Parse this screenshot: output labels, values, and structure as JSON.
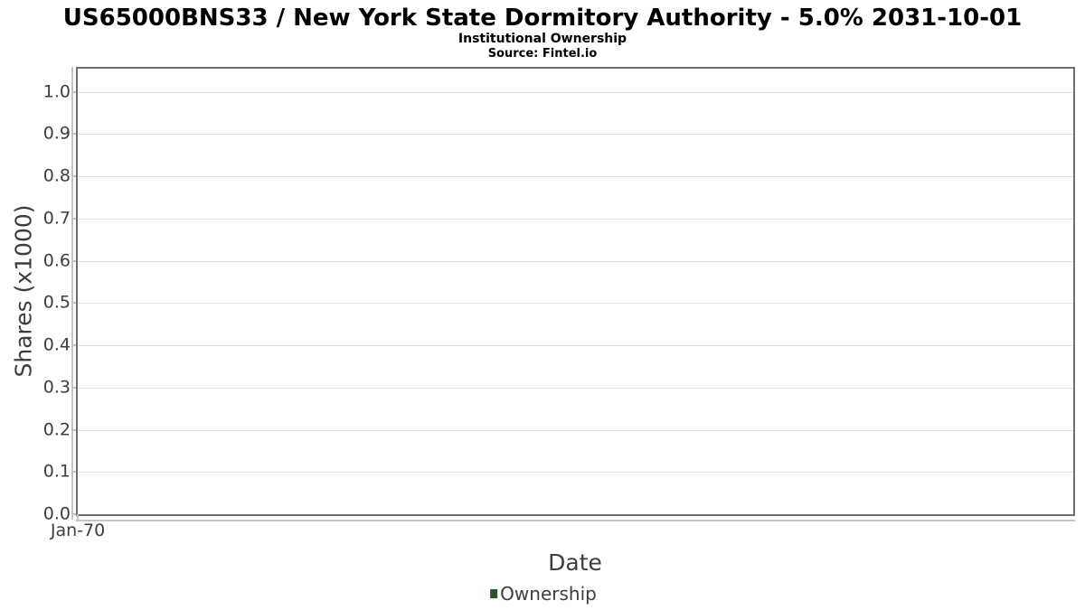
{
  "header": {
    "title": "US65000BNS33 / New York State Dormitory Authority - 5.0% 2031-10-01",
    "subtitle": "Institutional Ownership",
    "source": "Source: Fintel.io"
  },
  "colors": {
    "ownership_green": "#27522a",
    "grid_line": "#e2e2e2",
    "plot_border": "#6e6e6e",
    "tick_line": "#c4c4c4",
    "axis_text": "#3d3d3d",
    "title_text": "#000000"
  },
  "chart_data": {
    "type": "line",
    "title": "US65000BNS33 / New York State Dormitory Authority - 5.0% 2031-10-01",
    "subtitle": "Institutional Ownership",
    "source": "Source: Fintel.io",
    "xlabel": "Date",
    "ylabel": "Shares (x1000)",
    "xticks": [
      "Jan-70"
    ],
    "yticks": [
      "0.0",
      "0.1",
      "0.2",
      "0.3",
      "0.4",
      "0.5",
      "0.6",
      "0.7",
      "0.8",
      "0.9",
      "1.0"
    ],
    "ylim": [
      0,
      1.055
    ],
    "grid": true,
    "legend_position": "bottom-center",
    "series": [
      {
        "name": "Ownership",
        "color": "#27522a",
        "x": [],
        "values": []
      }
    ]
  }
}
